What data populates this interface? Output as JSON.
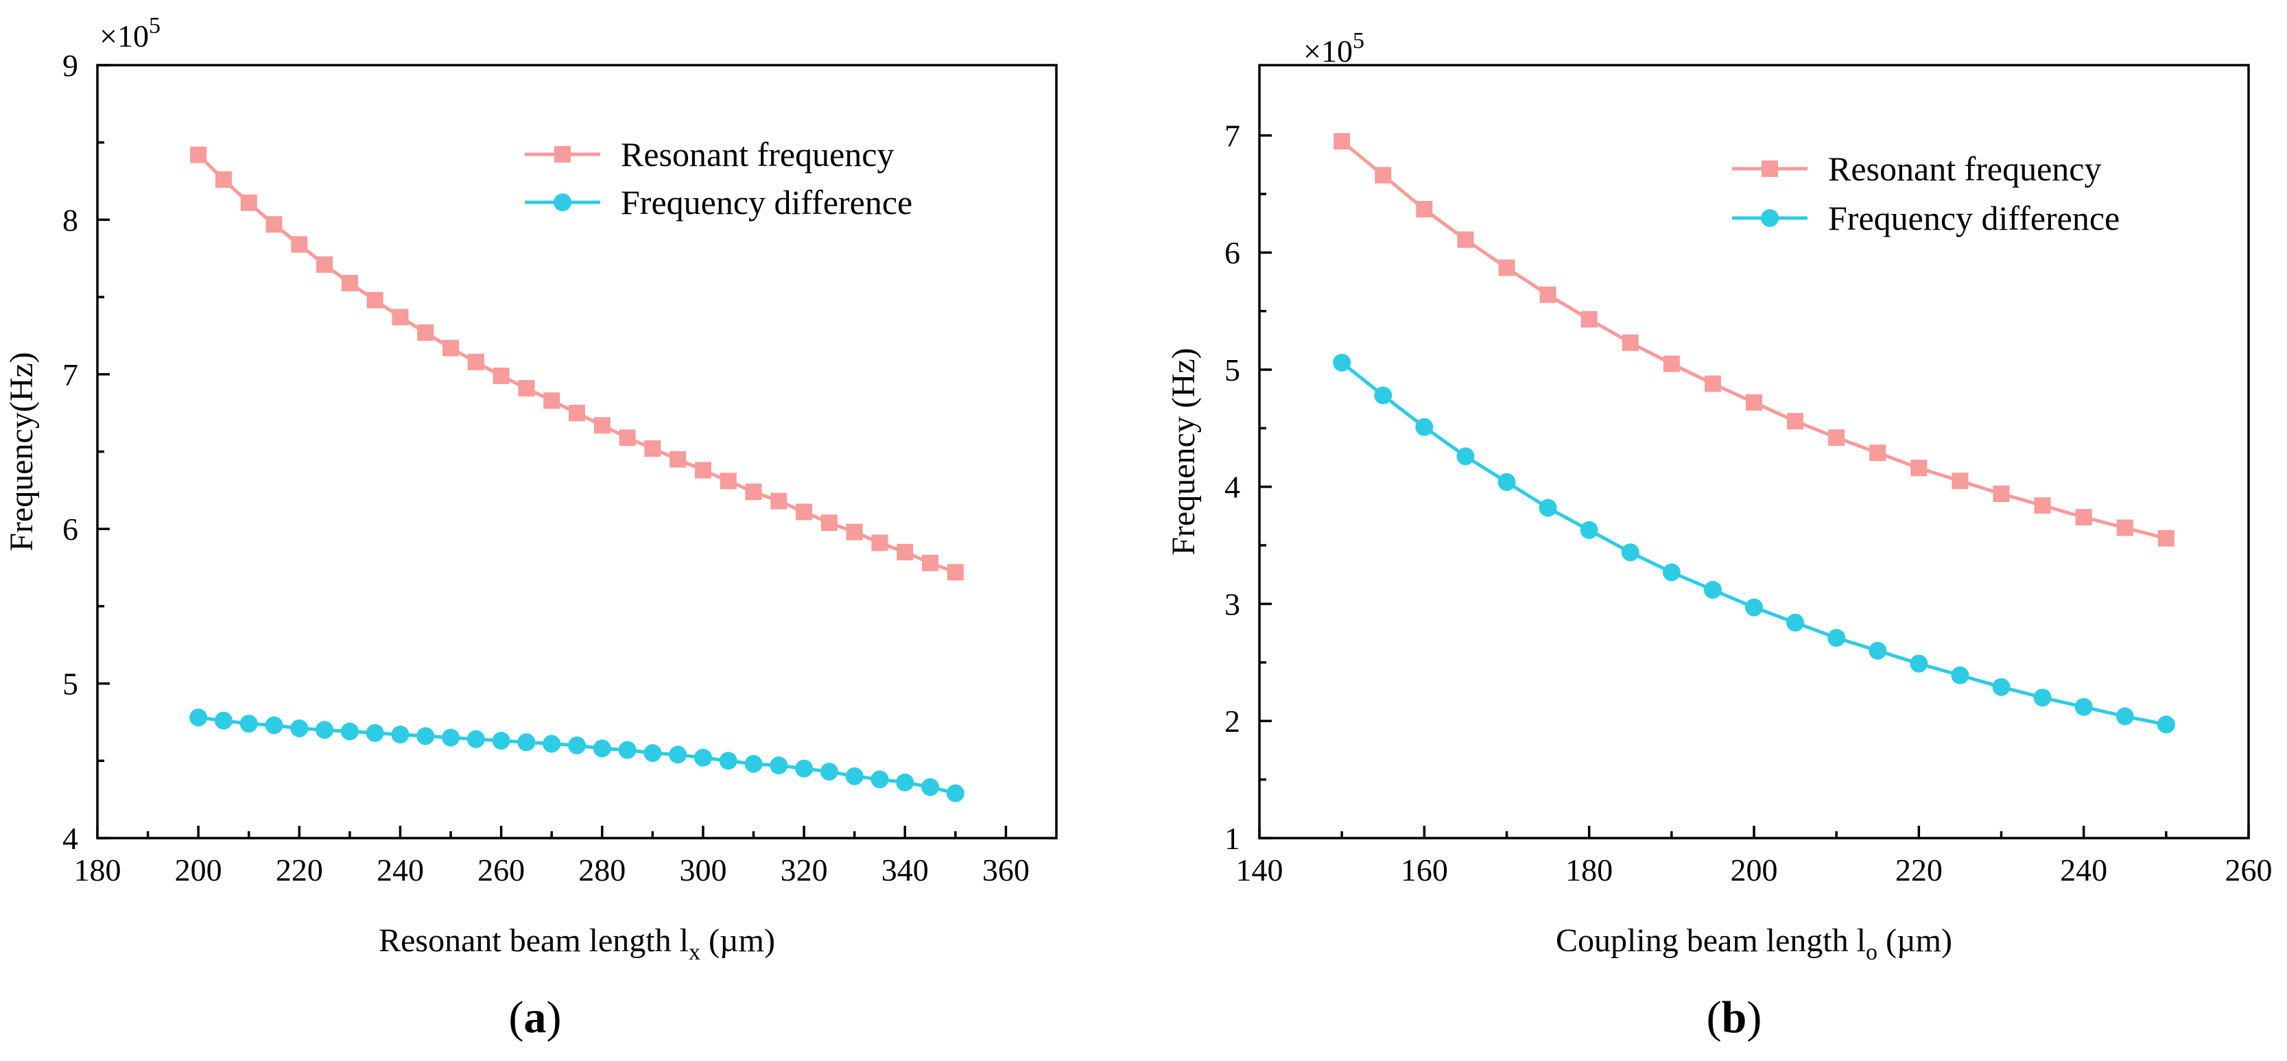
{
  "chart_data": [
    {
      "type": "line",
      "panel_label": "a",
      "multiplier": "×10",
      "multiplier_exp": "5",
      "xlabel": "Resonant beam length l",
      "xlabel_sub": "x",
      "xlabel_unit": " (µm)",
      "ylabel": "Frequency(Hz)",
      "xlim": [
        180,
        370
      ],
      "ylim": [
        4,
        9
      ],
      "xticks": [
        180,
        200,
        220,
        240,
        260,
        280,
        300,
        320,
        340,
        360
      ],
      "yticks": [
        4,
        5,
        6,
        7,
        8,
        9
      ],
      "legend_position": "top-right",
      "x": [
        200,
        205,
        210,
        215,
        220,
        225,
        230,
        235,
        240,
        245,
        250,
        255,
        260,
        265,
        270,
        275,
        280,
        285,
        290,
        295,
        300,
        305,
        310,
        315,
        320,
        325,
        330,
        335,
        340,
        345,
        350
      ],
      "series": [
        {
          "name": "Resonant frequency",
          "marker": "square",
          "color": "#f79b9b",
          "values": [
            8.42,
            8.26,
            8.11,
            7.97,
            7.84,
            7.71,
            7.59,
            7.48,
            7.37,
            7.27,
            7.17,
            7.08,
            6.99,
            6.91,
            6.83,
            6.75,
            6.67,
            6.59,
            6.52,
            6.45,
            6.38,
            6.31,
            6.24,
            6.18,
            6.11,
            6.04,
            5.98,
            5.91,
            5.85,
            5.78,
            5.72
          ]
        },
        {
          "name": "Frequency difference",
          "marker": "circle",
          "color": "#2ecbe4",
          "values": [
            4.78,
            4.76,
            4.74,
            4.73,
            4.71,
            4.7,
            4.69,
            4.68,
            4.67,
            4.66,
            4.65,
            4.64,
            4.63,
            4.62,
            4.61,
            4.6,
            4.58,
            4.57,
            4.55,
            4.54,
            4.52,
            4.5,
            4.48,
            4.47,
            4.45,
            4.43,
            4.4,
            4.38,
            4.36,
            4.33,
            4.29
          ]
        }
      ]
    },
    {
      "type": "line",
      "panel_label": "b",
      "multiplier": "×10",
      "multiplier_exp": "5",
      "xlabel": "Coupling beam length l",
      "xlabel_sub": "o",
      "xlabel_unit": " (µm)",
      "ylabel": "Frequency (Hz)",
      "xlim": [
        140,
        260
      ],
      "ylim": [
        1,
        7.6
      ],
      "xticks": [
        140,
        160,
        180,
        200,
        220,
        240,
        260
      ],
      "yticks": [
        1,
        2,
        3,
        4,
        5,
        6,
        7
      ],
      "legend_position": "top-right",
      "x": [
        150,
        155,
        160,
        165,
        170,
        175,
        180,
        185,
        190,
        195,
        200,
        205,
        210,
        215,
        220,
        225,
        230,
        235,
        240,
        245,
        250
      ],
      "series": [
        {
          "name": "Resonant frequency",
          "marker": "square",
          "color": "#f79b9b",
          "values": [
            6.95,
            6.66,
            6.37,
            6.11,
            5.87,
            5.64,
            5.43,
            5.23,
            5.05,
            4.88,
            4.72,
            4.56,
            4.42,
            4.29,
            4.16,
            4.05,
            3.94,
            3.84,
            3.74,
            3.65,
            3.56
          ]
        },
        {
          "name": "Frequency difference",
          "marker": "circle",
          "color": "#2ecbe4",
          "values": [
            5.06,
            4.78,
            4.51,
            4.26,
            4.04,
            3.82,
            3.63,
            3.44,
            3.27,
            3.12,
            2.97,
            2.84,
            2.71,
            2.6,
            2.49,
            2.39,
            2.29,
            2.2,
            2.12,
            2.04,
            1.97
          ]
        }
      ]
    }
  ]
}
